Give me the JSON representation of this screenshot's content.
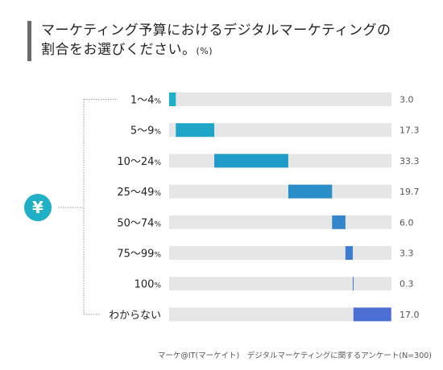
{
  "title": {
    "line1": "マーケティング予算におけるデジタルマーケティングの",
    "line2": "割合をお選びください。",
    "unit": "(%)"
  },
  "icon": {
    "name": "yen-icon",
    "glyph": "¥",
    "color": "#1fb0c7"
  },
  "source": "マーケ@IT(マーケイト)　デジタルマーケティングに関するアンケート(N=300)",
  "chart_data": {
    "type": "bar",
    "layout": "waterfall",
    "categories": [
      "1〜4%",
      "5〜9%",
      "10〜24%",
      "25〜49%",
      "50〜74%",
      "75〜99%",
      "100%",
      "わからない"
    ],
    "values": [
      3.0,
      17.3,
      33.3,
      19.7,
      6.0,
      3.3,
      0.3,
      17.0
    ],
    "value_labels": [
      "3.0",
      "17.3",
      "33.3",
      "19.7",
      "6.0",
      "3.3",
      "0.3",
      "17.0"
    ],
    "colors": [
      "#1fb0c7",
      "#1fa5c8",
      "#1f9bc9",
      "#2a8ec9",
      "#3585cc",
      "#3d7dcf",
      "#4575d2",
      "#4d6fd4"
    ],
    "track_color": "#e6e6e6",
    "xlim": [
      0,
      100
    ]
  }
}
